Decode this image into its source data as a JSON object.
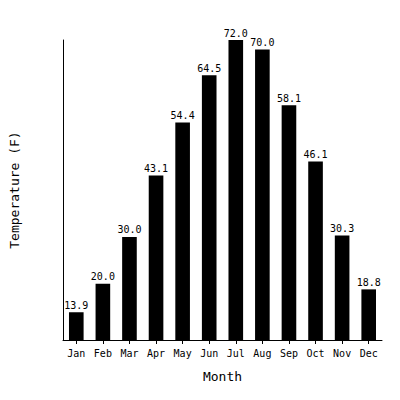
{
  "chart_data": {
    "type": "bar",
    "x_label": "Month",
    "y_label": "Temperature (F)",
    "categories": [
      "Jan",
      "Feb",
      "Mar",
      "Apr",
      "May",
      "Jun",
      "Jul",
      "Aug",
      "Sep",
      "Oct",
      "Nov",
      "Dec"
    ],
    "values": [
      13.9,
      20.0,
      30.0,
      43.1,
      54.4,
      64.5,
      72.0,
      70.0,
      58.1,
      46.1,
      30.3,
      18.8
    ],
    "value_labels": [
      "13.9",
      "20.0",
      "30.0",
      "43.1",
      "54.4",
      "64.5",
      "72.0",
      "70.0",
      "58.1",
      "46.1",
      "30.3",
      "18.8"
    ],
    "color": "#000000",
    "ylim": [
      8,
      72
    ],
    "yticks": [],
    "grid": false,
    "data_labels": true,
    "tick_labels": "x"
  }
}
